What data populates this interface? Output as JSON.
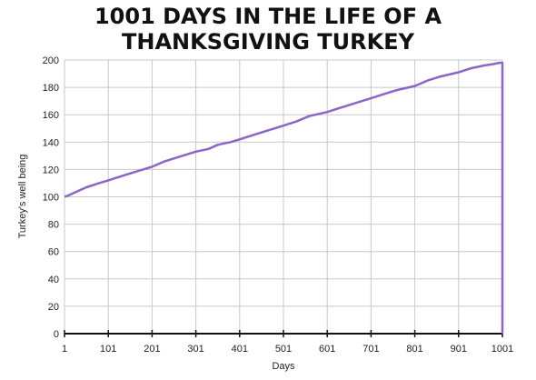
{
  "chart_data": {
    "type": "line",
    "title_lines": [
      "1001 DAYS IN THE LIFE OF A",
      "THANKSGIVING TURKEY"
    ],
    "xlabel": "Days",
    "ylabel": "Turkey's well being",
    "xlim": [
      1,
      1001
    ],
    "ylim": [
      0,
      200
    ],
    "x_ticks": [
      1,
      101,
      201,
      301,
      401,
      501,
      601,
      701,
      801,
      901,
      1001
    ],
    "y_ticks": [
      0,
      20,
      40,
      60,
      80,
      100,
      120,
      140,
      160,
      180,
      200
    ],
    "grid": true,
    "line_color": "#8a66c9",
    "series": [
      {
        "x": [
          1,
          10,
          30,
          51,
          80,
          101,
          130,
          160,
          201,
          230,
          260,
          301,
          330,
          351,
          380,
          401,
          430,
          460,
          501,
          530,
          560,
          601,
          630,
          660,
          701,
          730,
          760,
          801,
          830,
          860,
          901,
          930,
          960,
          980,
          995,
          1001,
          1001
        ],
        "y": [
          100,
          101,
          104,
          107,
          110,
          112,
          115,
          118,
          122,
          126,
          129,
          133,
          135,
          138,
          140,
          142,
          145,
          148,
          152,
          155,
          159,
          162,
          165,
          168,
          172,
          175,
          178,
          181,
          185,
          188,
          191,
          194,
          196,
          197,
          198,
          198,
          0
        ]
      }
    ]
  }
}
